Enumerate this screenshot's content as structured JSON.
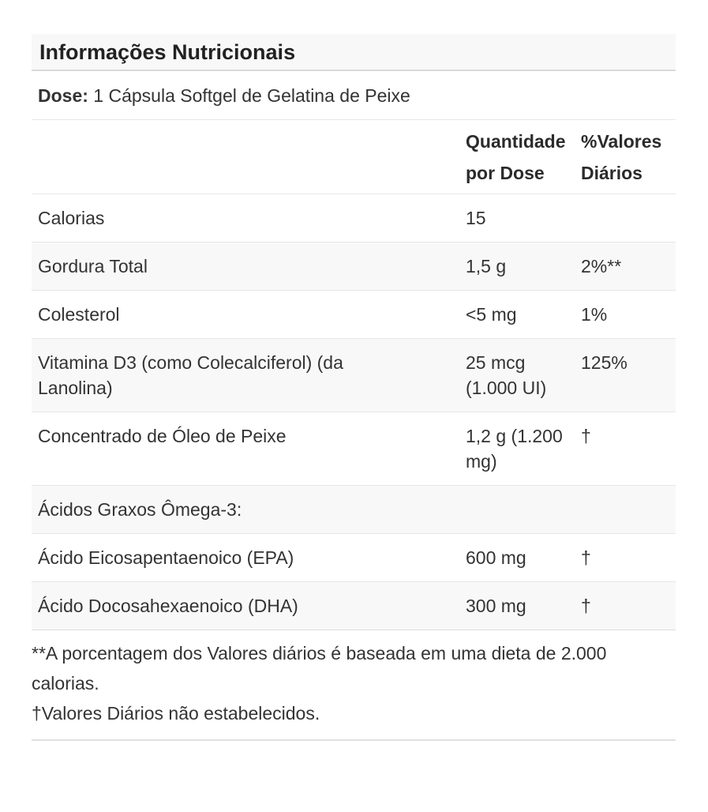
{
  "panel": {
    "title": "Informações Nutricionais",
    "dose": {
      "label": "Dose:",
      "value": "1 Cápsula Softgel de Gelatina de Peixe"
    },
    "table": {
      "header": {
        "nutrient": "",
        "amount": "Quantidade por Dose",
        "daily_value": "%Valores Diários"
      },
      "rows": [
        {
          "name": "Calorias",
          "amount": "15",
          "daily_value": ""
        },
        {
          "name": "Gordura Total",
          "amount": "1,5 g",
          "daily_value": "2%**"
        },
        {
          "name": "Colesterol",
          "amount": "<5 mg",
          "daily_value": "1%"
        },
        {
          "name": "Vitamina D3 (como Colecalciferol) (da Lanolina)",
          "amount": "25 mcg (1.000 UI)",
          "daily_value": "125%"
        },
        {
          "name": "Concentrado de Óleo de Peixe",
          "amount": "1,2 g (1.200 mg)",
          "daily_value": "†"
        },
        {
          "name": "Ácidos Graxos Ômega-3:",
          "amount": "",
          "daily_value": ""
        },
        {
          "name": "Ácido Eicosapentaenoico (EPA)",
          "amount": "600 mg",
          "daily_value": "†"
        },
        {
          "name": "Ácido Docosahexaenoico (DHA)",
          "amount": "300 mg",
          "daily_value": "†"
        }
      ]
    },
    "footnotes": [
      "**A porcentagem dos Valores diários é baseada em uma dieta de 2.000 calorias.",
      "†Valores Diários não estabelecidos."
    ],
    "colors": {
      "row_stripe": "#f8f8f8",
      "divider": "#e7e7e7",
      "header_divider": "#d9d9d9",
      "text": "#333333"
    }
  }
}
